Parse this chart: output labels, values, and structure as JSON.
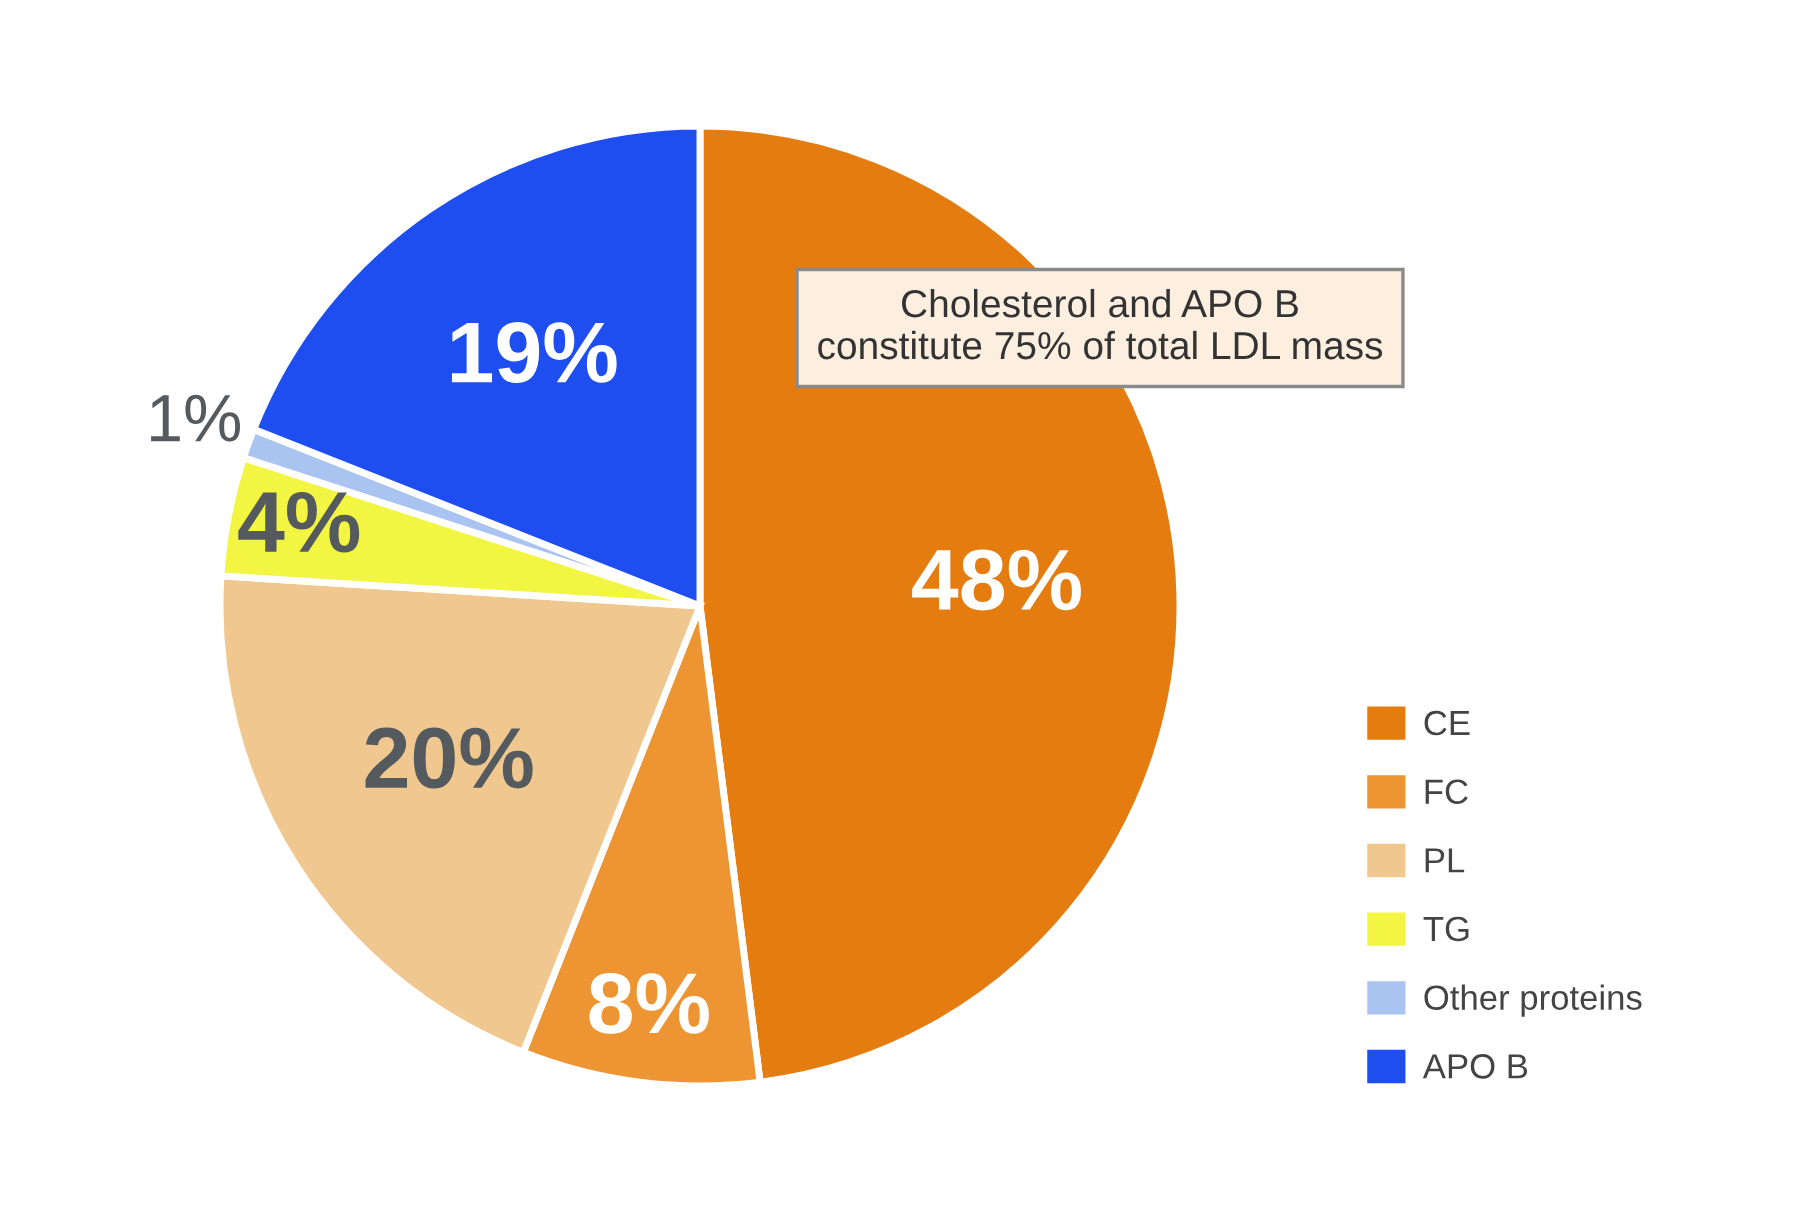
{
  "chart_data": {
    "type": "pie",
    "categories": [
      "CE",
      "FC",
      "PL",
      "TG",
      "Other proteins",
      "APO B"
    ],
    "values": [
      48,
      8,
      20,
      4,
      1,
      19
    ],
    "colors": [
      "#e57c10",
      "#ed9433",
      "#f0c88f",
      "#f2f542",
      "#a9c4f0",
      "#1e4ef0"
    ],
    "value_labels": [
      "48%",
      "8%",
      "20%",
      "4%",
      "1%",
      "19%"
    ],
    "annotations": [
      "Cholesterol and APO B\nconstitute 75% of total LDL mass"
    ],
    "legend": "right"
  }
}
